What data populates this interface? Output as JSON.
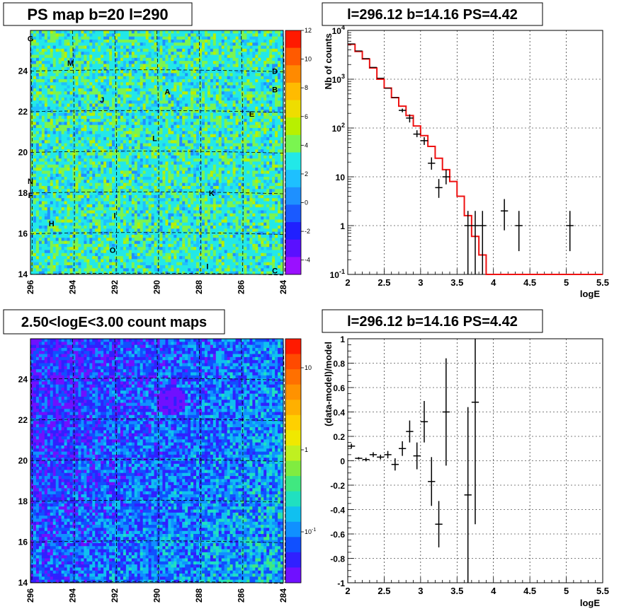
{
  "chart_data": [
    {
      "type": "heatmap",
      "panel": "top-left",
      "title": "PS map b=20 l=290",
      "x_ticks": [
        "296",
        "294",
        "292",
        "290",
        "288",
        "286",
        "284"
      ],
      "y_ticks": [
        "14",
        "16",
        "18",
        "20",
        "22",
        "24"
      ],
      "xlim": [
        284,
        296
      ],
      "ylim": [
        14,
        26
      ],
      "x_reversed": true,
      "colorbar_ticks": [
        "12",
        "10",
        "8",
        "6",
        "4",
        "2",
        "0",
        "-2",
        "-4"
      ],
      "colorbar_range": [
        -5,
        12
      ],
      "grid": true,
      "source_labels": [
        {
          "label": "G",
          "l": 296.0,
          "b": 25.6
        },
        {
          "label": "M",
          "l": 294.1,
          "b": 24.4
        },
        {
          "label": "J",
          "l": 292.6,
          "b": 22.6
        },
        {
          "label": "A",
          "l": 289.5,
          "b": 23.0
        },
        {
          "label": "D",
          "l": 284.4,
          "b": 24.0
        },
        {
          "label": "B",
          "l": 284.4,
          "b": 23.1
        },
        {
          "label": "E",
          "l": 285.5,
          "b": 21.9
        },
        {
          "label": "L",
          "l": 290.1,
          "b": 20.7
        },
        {
          "label": "N",
          "l": 296.0,
          "b": 18.6
        },
        {
          "label": "F",
          "l": 296.0,
          "b": 17.9
        },
        {
          "label": "K",
          "l": 287.4,
          "b": 18.0
        },
        {
          "label": "H",
          "l": 295.0,
          "b": 16.5
        },
        {
          "label": "I",
          "l": 292.0,
          "b": 16.9
        },
        {
          "label": "O",
          "l": 292.1,
          "b": 15.2
        },
        {
          "label": "I",
          "l": 287.6,
          "b": 14.4
        },
        {
          "label": "C",
          "l": 284.4,
          "b": 14.2
        }
      ]
    },
    {
      "type": "line",
      "panel": "top-right",
      "title": "l=296.12 b=14.16 PS=4.42",
      "xlabel": "logE",
      "ylabel": "Nb of counts",
      "xlim": [
        2,
        5.5
      ],
      "ylim": [
        0.1,
        10000
      ],
      "y_scale": "log",
      "grid": true,
      "x_ticks": [
        "2",
        "2.5",
        "3",
        "3.5",
        "4",
        "4.5",
        "5",
        "5.5"
      ],
      "y_ticks": [
        "10^-1",
        "1",
        "10",
        "10^2",
        "10^3",
        "10^4"
      ],
      "model_step": {
        "name": "model",
        "color": "#ee1111",
        "edges": [
          2.0,
          2.1,
          2.2,
          2.3,
          2.4,
          2.5,
          2.6,
          2.7,
          2.8,
          2.9,
          3.0,
          3.1,
          3.2,
          3.3,
          3.4,
          3.5,
          3.6,
          3.7,
          3.8,
          3.9,
          4.0,
          5.5
        ],
        "values": [
          5200,
          3700,
          2600,
          1700,
          1000,
          660,
          420,
          280,
          180,
          110,
          70,
          42,
          24,
          14,
          8,
          4,
          1.6,
          0.6,
          0.25,
          0.1,
          0.1
        ]
      },
      "data_points": [
        {
          "x": 2.85,
          "y": 160,
          "ylo": 130,
          "yhi": 190
        },
        {
          "x": 2.75,
          "y": 230,
          "ylo": 210,
          "yhi": 250
        },
        {
          "x": 2.95,
          "y": 75,
          "ylo": 65,
          "yhi": 90
        },
        {
          "x": 3.05,
          "y": 55,
          "ylo": 45,
          "yhi": 65
        },
        {
          "x": 3.15,
          "y": 19,
          "ylo": 14,
          "yhi": 25
        },
        {
          "x": 3.25,
          "y": 6,
          "ylo": 3.7,
          "yhi": 9
        },
        {
          "x": 3.35,
          "y": 10,
          "ylo": 7,
          "yhi": 14
        },
        {
          "x": 3.65,
          "y": 1,
          "ylo": 0.1,
          "yhi": 2
        },
        {
          "x": 3.75,
          "y": 1,
          "ylo": 0.1,
          "yhi": 2
        },
        {
          "x": 3.85,
          "y": 1,
          "ylo": 0.1,
          "yhi": 2
        },
        {
          "x": 4.15,
          "y": 2,
          "ylo": 0.8,
          "yhi": 3.5
        },
        {
          "x": 4.35,
          "y": 1,
          "ylo": 0.3,
          "yhi": 2
        },
        {
          "x": 5.05,
          "y": 1,
          "ylo": 0.3,
          "yhi": 2
        }
      ]
    },
    {
      "type": "heatmap",
      "panel": "bottom-left",
      "title": "2.50<logE<3.00 count maps",
      "x_ticks": [
        "296",
        "294",
        "292",
        "290",
        "288",
        "286",
        "284"
      ],
      "y_ticks": [
        "14",
        "16",
        "18",
        "20",
        "22",
        "24"
      ],
      "xlim": [
        284,
        296
      ],
      "ylim": [
        14,
        26
      ],
      "x_reversed": true,
      "colorbar_scale": "log",
      "colorbar_ticks": [
        "10",
        "1",
        "10^-1"
      ],
      "grid": true
    },
    {
      "type": "scatter",
      "panel": "bottom-right",
      "title": "l=296.12 b=14.16 PS=4.42",
      "xlabel": "logE",
      "ylabel": "(data-model)/model",
      "xlim": [
        2,
        5.5
      ],
      "ylim": [
        -1,
        1
      ],
      "grid": true,
      "x_ticks": [
        "2",
        "2.5",
        "3",
        "3.5",
        "4",
        "4.5",
        "5",
        "5.5"
      ],
      "y_ticks": [
        "-1",
        "-0.8",
        "-0.6",
        "-0.4",
        "-0.2",
        "0",
        "0.2",
        "0.4",
        "0.6",
        "0.8",
        "1"
      ],
      "data_points": [
        {
          "x": 2.05,
          "y": 0.12,
          "err": 0.02
        },
        {
          "x": 2.15,
          "y": 0.02,
          "err": 0.01
        },
        {
          "x": 2.25,
          "y": 0.01,
          "err": 0.015
        },
        {
          "x": 2.35,
          "y": 0.05,
          "err": 0.02
        },
        {
          "x": 2.45,
          "y": 0.03,
          "err": 0.02
        },
        {
          "x": 2.55,
          "y": 0.05,
          "err": 0.03
        },
        {
          "x": 2.65,
          "y": -0.03,
          "err": 0.05
        },
        {
          "x": 2.75,
          "y": 0.1,
          "err": 0.06
        },
        {
          "x": 2.85,
          "y": 0.24,
          "err": 0.09
        },
        {
          "x": 2.95,
          "y": 0.04,
          "err": 0.11
        },
        {
          "x": 3.05,
          "y": 0.32,
          "err": 0.17
        },
        {
          "x": 3.15,
          "y": -0.17,
          "err": 0.2
        },
        {
          "x": 3.25,
          "y": -0.52,
          "err": 0.19
        },
        {
          "x": 3.35,
          "y": 0.4,
          "err": 0.44
        },
        {
          "x": 3.65,
          "y": -0.28,
          "err": 0.72
        },
        {
          "x": 3.75,
          "y": 0.48,
          "err": 1.0
        }
      ]
    }
  ]
}
